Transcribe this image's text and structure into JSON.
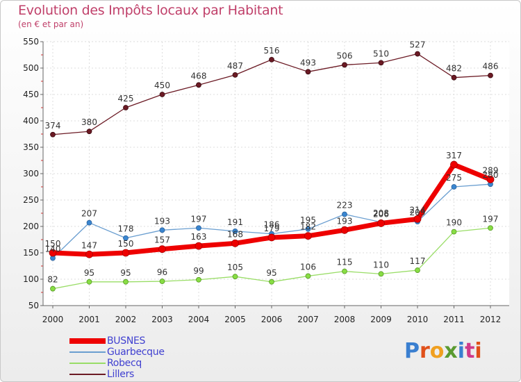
{
  "header": {
    "title": "Evolution des Impôts locaux par Habitant",
    "subtitle": "(en € et par an)"
  },
  "logo": {
    "text": "Proxiti",
    "colors": [
      "#3a7fd0",
      "#e0501a",
      "#f0a020",
      "#5a9a30",
      "#3a7fd0",
      "#d03a8a",
      "#e0501a"
    ]
  },
  "chart_data": {
    "type": "line",
    "title": "Evolution des Impôts locaux par Habitant",
    "subtitle": "(en € et par an)",
    "xlabel": "",
    "ylabel": "",
    "categories": [
      "2000",
      "2001",
      "2002",
      "2003",
      "2004",
      "2005",
      "2006",
      "2007",
      "2008",
      "2009",
      "2010",
      "2011",
      "2012"
    ],
    "ylim": [
      50,
      550
    ],
    "yticks": [
      50,
      100,
      150,
      200,
      250,
      300,
      350,
      400,
      450,
      500,
      550
    ],
    "grid": true,
    "legend": "bottom-left",
    "series": [
      {
        "name": "BUSNES",
        "color": "#ee0000",
        "values": [
          150,
          147,
          150,
          157,
          163,
          168,
          179,
          182,
          193,
          206,
          214,
          317,
          289
        ],
        "labels": [
          "150",
          "147",
          "150",
          "157",
          "163",
          "168",
          "179",
          "182",
          "193",
          "206",
          "214",
          "317",
          "289"
        ]
      },
      {
        "name": "Guarbecque",
        "color": "#6a9ed0",
        "values": [
          140,
          207,
          178,
          193,
          197,
          191,
          186,
          195,
          223,
          208,
          209,
          275,
          280
        ],
        "labels": [
          "140",
          "207",
          "178",
          "193",
          "197",
          "191",
          "186",
          "195",
          "223",
          "208",
          "209",
          "275",
          "280"
        ]
      },
      {
        "name": "Robecq",
        "color": "#99dd66",
        "values": [
          82,
          95,
          95,
          96,
          99,
          105,
          95,
          106,
          115,
          110,
          117,
          190,
          197
        ],
        "labels": [
          "82",
          "95",
          "95",
          "96",
          "99",
          "105",
          "95",
          "106",
          "115",
          "110",
          "117",
          "190",
          "197"
        ]
      },
      {
        "name": "Lillers",
        "color": "#6b1a24",
        "values": [
          374,
          380,
          425,
          450,
          468,
          487,
          516,
          493,
          506,
          510,
          527,
          482,
          486
        ],
        "labels": [
          "374",
          "380",
          "425",
          "450",
          "468",
          "487",
          "516",
          "493",
          "506",
          "510",
          "527",
          "482",
          "486"
        ]
      }
    ]
  }
}
